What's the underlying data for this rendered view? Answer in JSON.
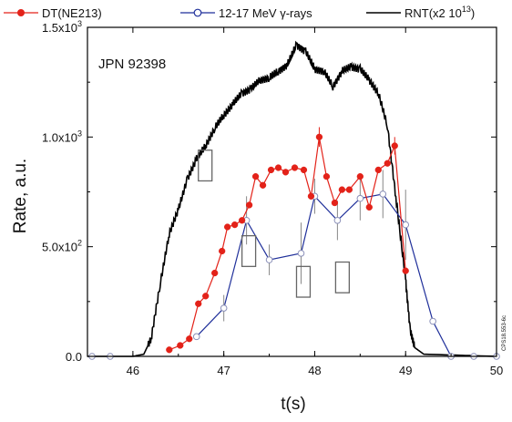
{
  "chart_data": {
    "type": "line",
    "xlabel": "t(s)",
    "ylabel": "Rate, a.u.",
    "xlim": [
      45.5,
      50
    ],
    "ylim": [
      0,
      1500
    ],
    "x_ticks": [
      {
        "v": 46,
        "label": "46"
      },
      {
        "v": 47,
        "label": "47"
      },
      {
        "v": 48,
        "label": "48"
      },
      {
        "v": 49,
        "label": "49"
      },
      {
        "v": 50,
        "label": "50"
      }
    ],
    "y_ticks": [
      {
        "v": 0,
        "label": "0.0"
      },
      {
        "v": 500,
        "label": "5.0x10",
        "sup": "2"
      },
      {
        "v": 1000,
        "label": "1.0x10",
        "sup": "3"
      },
      {
        "v": 1500,
        "label": "1.5x10",
        "sup": "3"
      }
    ],
    "annotation": "JPN 92398",
    "side_label": "CPS18.553-6c",
    "legend": [
      {
        "label": "DT(NE213)",
        "color": "#e32219",
        "marker": "filled-circle"
      },
      {
        "label": "12-17 MeV γ-rays",
        "color": "#1f2f9a",
        "marker": "open-circle"
      },
      {
        "label": "RNT(x2 10",
        "sup": "13",
        "suffix": ")",
        "color": "#000000",
        "marker": "line"
      }
    ],
    "series": [
      {
        "name": "DT(NE213)",
        "color": "#e32219",
        "marker": "filled-circle",
        "points": [
          [
            46.4,
            30,
            0
          ],
          [
            46.52,
            50,
            0
          ],
          [
            46.62,
            80,
            0
          ],
          [
            46.72,
            240,
            0
          ],
          [
            46.8,
            275,
            0
          ],
          [
            46.9,
            380,
            0
          ],
          [
            46.98,
            480,
            0
          ],
          [
            47.04,
            590,
            0
          ],
          [
            47.12,
            600,
            0
          ],
          [
            47.2,
            620,
            0
          ],
          [
            47.28,
            690,
            0
          ],
          [
            47.35,
            820,
            0
          ],
          [
            47.43,
            780,
            0
          ],
          [
            47.52,
            850,
            0
          ],
          [
            47.6,
            860,
            0
          ],
          [
            47.68,
            840,
            0
          ],
          [
            47.78,
            860,
            0
          ],
          [
            47.88,
            850,
            0
          ],
          [
            47.96,
            730,
            0
          ],
          [
            48.05,
            1000,
            45
          ],
          [
            48.13,
            820,
            0
          ],
          [
            48.22,
            700,
            0
          ],
          [
            48.3,
            760,
            0
          ],
          [
            48.38,
            760,
            0
          ],
          [
            48.5,
            820,
            0
          ],
          [
            48.6,
            680,
            0
          ],
          [
            48.7,
            850,
            0
          ],
          [
            48.8,
            880,
            0
          ],
          [
            48.88,
            960,
            40
          ],
          [
            49.0,
            390,
            0
          ]
        ]
      },
      {
        "name": "12-17 MeV γ-rays",
        "color": "#1f2f9a",
        "marker": "open-circle",
        "points": [
          [
            46.7,
            90,
            0
          ],
          [
            47.0,
            220,
            60
          ],
          [
            47.25,
            620,
            110
          ],
          [
            47.5,
            440,
            70
          ],
          [
            47.85,
            470,
            140
          ],
          [
            48.0,
            730,
            80
          ],
          [
            48.25,
            620,
            90
          ],
          [
            48.5,
            720,
            100
          ],
          [
            48.75,
            740,
            110
          ],
          [
            49.0,
            600,
            160
          ],
          [
            49.3,
            160,
            0
          ],
          [
            49.5,
            0,
            0
          ],
          [
            49.75,
            0,
            0
          ],
          [
            50.0,
            0,
            0
          ],
          [
            45.75,
            0,
            0
          ],
          [
            45.55,
            0,
            0
          ]
        ]
      },
      {
        "name": "RNT(x2 10^13)",
        "color": "#000000",
        "marker": "none",
        "x": [
          45.5,
          46.0,
          46.12,
          46.2,
          46.3,
          46.4,
          46.5,
          46.6,
          46.7,
          46.8,
          46.9,
          47.0,
          47.1,
          47.2,
          47.3,
          47.4,
          47.5,
          47.6,
          47.7,
          47.8,
          47.9,
          48.0,
          48.1,
          48.2,
          48.3,
          48.4,
          48.5,
          48.6,
          48.7,
          48.8,
          48.9,
          49.0,
          49.05,
          49.1,
          49.2,
          50.0
        ],
        "y": [
          0,
          0,
          10,
          80,
          330,
          560,
          670,
          810,
          900,
          960,
          1040,
          1100,
          1150,
          1200,
          1220,
          1260,
          1270,
          1300,
          1330,
          1420,
          1390,
          1310,
          1300,
          1230,
          1300,
          1320,
          1310,
          1260,
          1200,
          1050,
          700,
          350,
          120,
          40,
          10,
          0
        ]
      }
    ]
  }
}
